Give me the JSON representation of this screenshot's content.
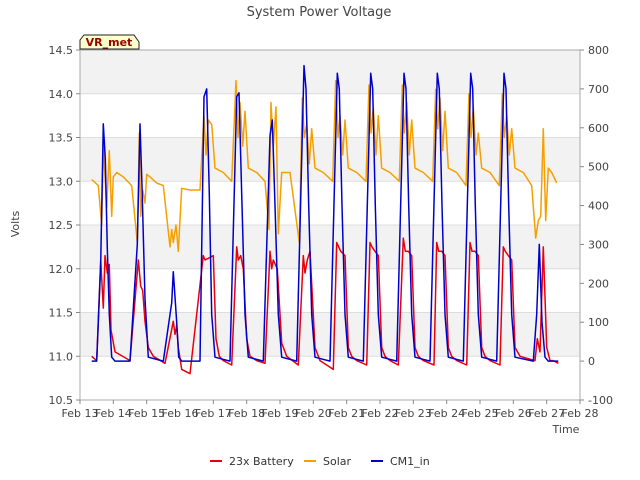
{
  "chart_data": {
    "type": "line",
    "title": "System Power Voltage",
    "xlabel": "Time",
    "ylabel": "Volts",
    "site_label": "VR_met",
    "x_ticks": [
      "Feb 13",
      "Feb 14",
      "Feb 15",
      "Feb 16",
      "Feb 17",
      "Feb 18",
      "Feb 19",
      "Feb 20",
      "Feb 21",
      "Feb 22",
      "Feb 23",
      "Feb 24",
      "Feb 25",
      "Feb 26",
      "Feb 27",
      "Feb 28"
    ],
    "xlim": [
      13,
      28
    ],
    "ylim": [
      10.5,
      14.5
    ],
    "y_ticks": [
      "10.5",
      "11.0",
      "11.5",
      "12.0",
      "12.5",
      "13.0",
      "13.5",
      "14.0",
      "14.5"
    ],
    "y2lim": [
      -100,
      800
    ],
    "y2_ticks": [
      "-100",
      "0",
      "100",
      "200",
      "300",
      "400",
      "500",
      "600",
      "700",
      "800"
    ],
    "legend": [
      "23x Battery",
      "Solar",
      "CM1_in"
    ],
    "legend_position": "bottom",
    "series": [
      {
        "name": "23x Battery",
        "axis": "left",
        "color": "#e8000b",
        "x": [
          13.35,
          13.5,
          13.62,
          13.7,
          13.75,
          13.82,
          13.88,
          13.93,
          14.05,
          14.5,
          14.75,
          14.82,
          14.88,
          14.95,
          15.05,
          15.2,
          15.55,
          15.8,
          15.85,
          15.9,
          15.95,
          16.05,
          16.15,
          16.3,
          16.7,
          16.75,
          16.85,
          17.0,
          17.08,
          17.18,
          17.3,
          17.55,
          17.7,
          17.75,
          17.82,
          17.9,
          18.0,
          18.1,
          18.3,
          18.55,
          18.7,
          18.75,
          18.8,
          18.92,
          19.05,
          19.2,
          19.55,
          19.7,
          19.75,
          19.82,
          19.9,
          20.05,
          20.2,
          20.6,
          20.7,
          20.76,
          20.82,
          20.95,
          21.05,
          21.15,
          21.3,
          21.6,
          21.7,
          21.76,
          21.85,
          21.95,
          22.05,
          22.15,
          22.3,
          22.55,
          22.7,
          22.76,
          22.85,
          22.95,
          23.05,
          23.15,
          23.3,
          23.62,
          23.7,
          23.76,
          23.85,
          23.95,
          24.05,
          24.15,
          24.3,
          24.6,
          24.7,
          24.76,
          24.85,
          24.95,
          25.05,
          25.15,
          25.3,
          25.6,
          25.7,
          25.76,
          25.85,
          25.95,
          26.05,
          26.2,
          26.65,
          26.72,
          26.8,
          26.9,
          27.0,
          27.1,
          27.2,
          27.35
        ],
        "y": [
          11.0,
          10.95,
          12.1,
          11.55,
          12.15,
          11.95,
          12.05,
          11.3,
          11.05,
          10.95,
          12.1,
          11.8,
          11.75,
          11.4,
          11.1,
          11.0,
          10.92,
          11.4,
          11.25,
          11.35,
          11.1,
          10.85,
          10.83,
          10.8,
          12.15,
          12.1,
          12.12,
          12.15,
          11.2,
          11.0,
          10.95,
          10.9,
          12.25,
          12.1,
          12.15,
          12.0,
          11.2,
          11.0,
          10.95,
          10.92,
          12.2,
          12.0,
          12.1,
          12.0,
          11.15,
          11.0,
          10.9,
          12.15,
          11.95,
          12.1,
          12.2,
          11.1,
          10.95,
          10.85,
          12.3,
          12.25,
          12.2,
          12.15,
          11.1,
          11.0,
          10.95,
          10.9,
          12.3,
          12.25,
          12.2,
          12.15,
          11.1,
          11.0,
          10.95,
          10.9,
          12.35,
          12.2,
          12.2,
          12.15,
          11.1,
          11.0,
          10.95,
          10.9,
          12.3,
          12.2,
          12.2,
          12.15,
          11.1,
          11.0,
          10.95,
          10.9,
          12.3,
          12.2,
          12.2,
          12.15,
          11.1,
          11.0,
          10.95,
          10.9,
          12.25,
          12.2,
          12.15,
          12.1,
          11.1,
          11.0,
          10.95,
          11.2,
          11.05,
          12.25,
          11.1,
          10.95,
          10.95,
          10.92
        ]
      },
      {
        "name": "Solar",
        "axis": "left",
        "color": "#f5a000",
        "x": [
          13.35,
          13.55,
          13.65,
          13.7,
          13.8,
          13.88,
          13.95,
          14.0,
          14.1,
          14.3,
          14.55,
          14.72,
          14.78,
          14.82,
          14.88,
          14.95,
          15.0,
          15.1,
          15.3,
          15.5,
          15.7,
          15.75,
          15.8,
          15.88,
          15.95,
          16.05,
          16.3,
          16.6,
          16.72,
          16.78,
          16.85,
          16.95,
          17.05,
          17.3,
          17.55,
          17.68,
          17.74,
          17.8,
          17.88,
          17.95,
          18.05,
          18.3,
          18.55,
          18.67,
          18.73,
          18.8,
          18.88,
          18.95,
          19.05,
          19.3,
          19.58,
          19.67,
          19.73,
          19.8,
          19.88,
          19.95,
          20.05,
          20.3,
          20.58,
          20.67,
          20.74,
          20.8,
          20.88,
          20.95,
          21.05,
          21.3,
          21.58,
          21.67,
          21.73,
          21.8,
          21.88,
          21.95,
          22.05,
          22.3,
          22.58,
          22.67,
          22.73,
          22.8,
          22.88,
          22.95,
          23.05,
          23.3,
          23.58,
          23.67,
          23.73,
          23.8,
          23.88,
          23.95,
          24.05,
          24.3,
          24.58,
          24.67,
          24.73,
          24.8,
          24.88,
          24.95,
          25.05,
          25.3,
          25.58,
          25.67,
          25.73,
          25.8,
          25.88,
          25.95,
          26.05,
          26.3,
          26.55,
          26.67,
          26.75,
          26.82,
          26.9,
          26.97,
          27.05,
          27.15,
          27.3
        ],
        "y": [
          13.02,
          12.95,
          12.5,
          13.4,
          12.7,
          13.35,
          12.6,
          13.05,
          13.1,
          13.05,
          12.95,
          12.3,
          13.55,
          12.6,
          12.9,
          12.75,
          13.08,
          13.05,
          12.98,
          12.95,
          12.25,
          12.45,
          12.3,
          12.5,
          12.2,
          12.92,
          12.9,
          12.9,
          13.75,
          13.3,
          13.7,
          13.65,
          13.15,
          13.1,
          13.0,
          14.15,
          13.5,
          13.9,
          13.4,
          13.8,
          13.15,
          13.1,
          13.0,
          12.45,
          13.9,
          13.4,
          13.85,
          12.4,
          13.1,
          13.1,
          12.3,
          13.95,
          13.5,
          13.65,
          13.2,
          13.6,
          13.15,
          13.1,
          13.0,
          14.15,
          13.5,
          13.75,
          13.3,
          13.7,
          13.15,
          13.1,
          13.0,
          14.1,
          13.55,
          13.85,
          13.3,
          13.75,
          13.15,
          13.1,
          13.0,
          14.1,
          13.55,
          13.9,
          13.3,
          13.7,
          13.15,
          13.1,
          13.0,
          14.05,
          13.6,
          13.95,
          13.35,
          13.8,
          13.15,
          13.1,
          12.95,
          14.0,
          13.5,
          13.85,
          13.3,
          13.55,
          13.15,
          13.1,
          12.95,
          14.0,
          13.5,
          13.75,
          13.3,
          13.6,
          13.15,
          13.1,
          12.95,
          12.35,
          12.55,
          12.6,
          13.6,
          12.55,
          13.15,
          13.1,
          12.98
        ]
      },
      {
        "name": "CM1_in",
        "axis": "right",
        "color": "#0000cc",
        "x": [
          13.35,
          13.5,
          13.62,
          13.7,
          13.76,
          13.82,
          13.88,
          13.95,
          14.05,
          14.5,
          14.72,
          14.8,
          14.86,
          14.95,
          15.05,
          15.5,
          15.75,
          15.8,
          15.9,
          15.96,
          16.05,
          16.6,
          16.72,
          16.8,
          16.88,
          16.95,
          17.05,
          17.5,
          17.7,
          17.77,
          17.85,
          17.95,
          18.05,
          18.5,
          18.7,
          18.77,
          18.85,
          18.95,
          19.05,
          19.5,
          19.72,
          19.78,
          19.86,
          19.95,
          20.05,
          20.5,
          20.72,
          20.78,
          20.86,
          20.95,
          21.05,
          21.5,
          21.72,
          21.78,
          21.86,
          21.95,
          22.05,
          22.5,
          22.72,
          22.78,
          22.86,
          22.95,
          23.05,
          23.5,
          23.72,
          23.78,
          23.86,
          23.95,
          24.05,
          24.5,
          24.72,
          24.78,
          24.86,
          24.95,
          25.05,
          25.5,
          25.72,
          25.78,
          25.86,
          25.95,
          26.05,
          26.6,
          26.7,
          26.78,
          26.86,
          26.95,
          27.05,
          27.35
        ],
        "y": [
          0,
          0,
          250,
          610,
          520,
          290,
          120,
          10,
          0,
          0,
          300,
          610,
          450,
          160,
          10,
          0,
          150,
          230,
          100,
          10,
          0,
          0,
          680,
          700,
          430,
          120,
          10,
          0,
          680,
          690,
          430,
          120,
          10,
          0,
          580,
          620,
          400,
          120,
          10,
          0,
          760,
          700,
          400,
          120,
          10,
          0,
          740,
          700,
          400,
          120,
          10,
          0,
          740,
          700,
          400,
          120,
          10,
          0,
          740,
          700,
          400,
          120,
          10,
          0,
          740,
          700,
          400,
          120,
          10,
          0,
          740,
          700,
          400,
          120,
          10,
          0,
          740,
          700,
          400,
          120,
          10,
          0,
          120,
          300,
          100,
          10,
          0,
          0
        ]
      }
    ]
  }
}
